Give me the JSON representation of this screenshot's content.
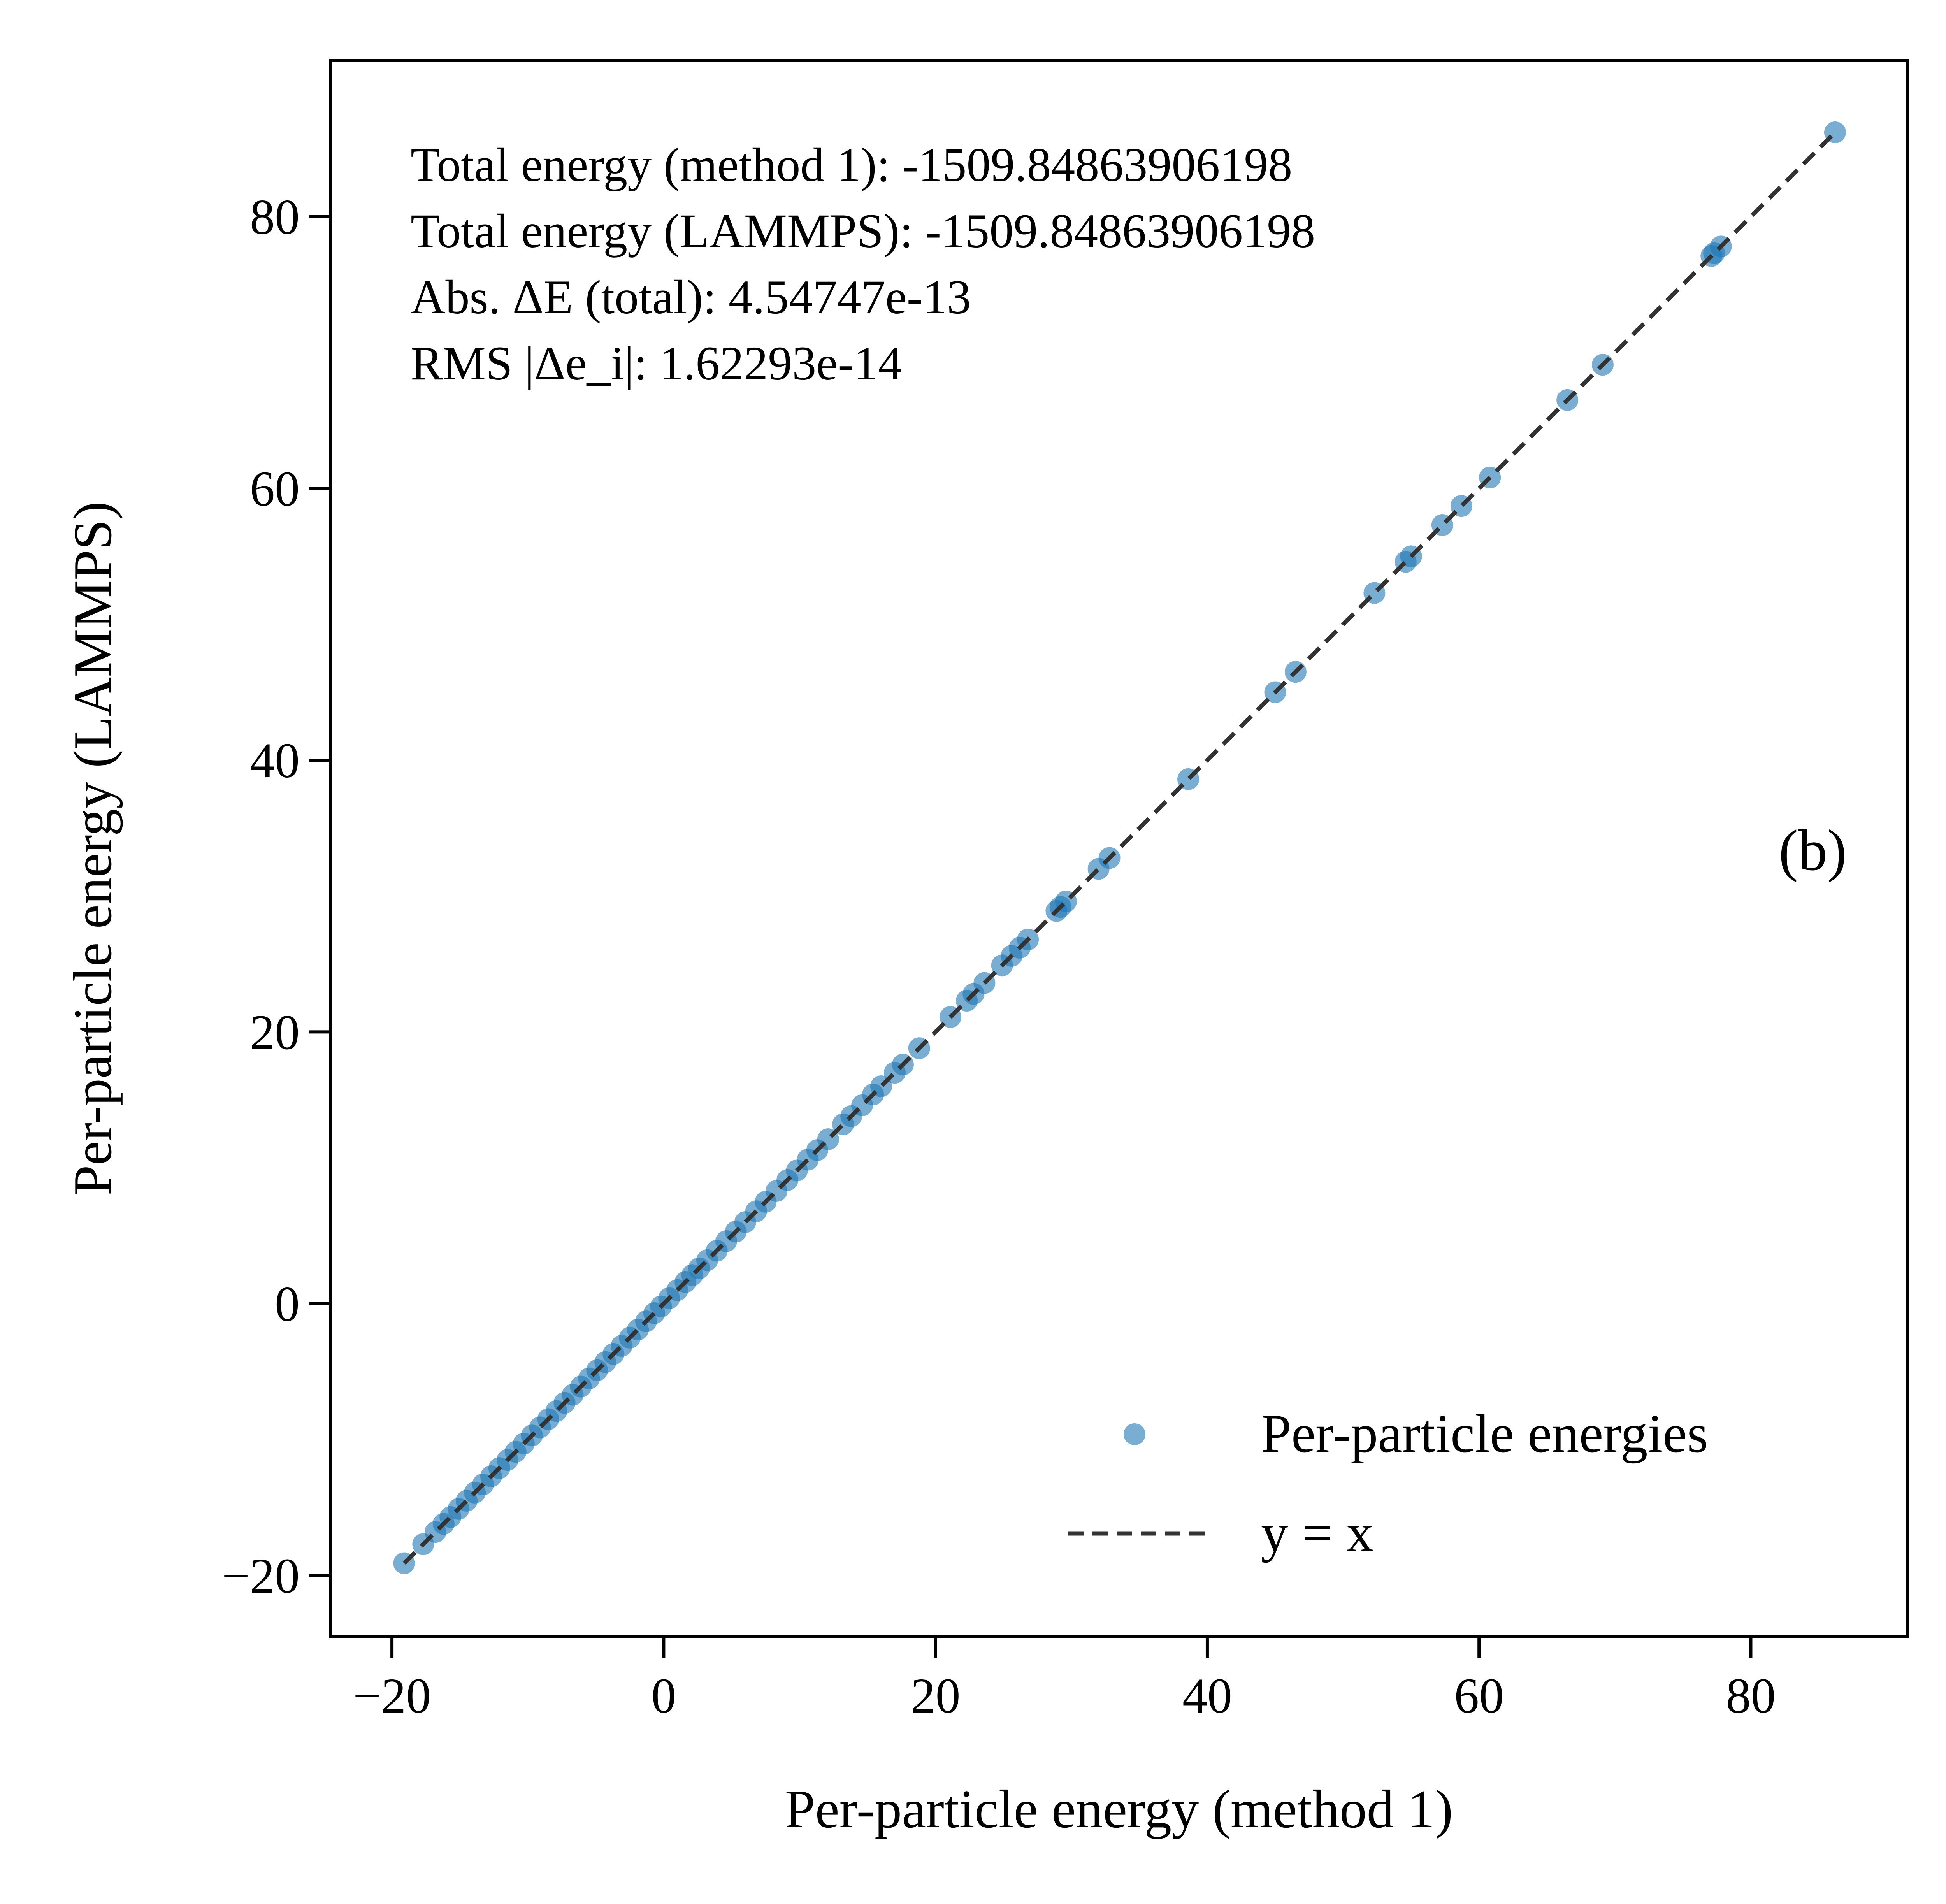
{
  "chart_data": {
    "type": "scatter",
    "title": "",
    "xlabel": "Per-particle energy (method 1)",
    "ylabel": "Per-particle energy (LAMMPS)",
    "xlim": [
      -24.5,
      91.5
    ],
    "ylim": [
      -24.5,
      91.5
    ],
    "x_ticks": [
      -20,
      0,
      20,
      40,
      60,
      80
    ],
    "y_ticks": [
      -20,
      0,
      20,
      40,
      60,
      80
    ],
    "x_tick_labels": [
      "−20",
      "0",
      "20",
      "40",
      "60",
      "80"
    ],
    "y_tick_labels": [
      "−20",
      "0",
      "20",
      "40",
      "60",
      "80"
    ],
    "grid": false,
    "legend_position": "lower-right",
    "panel_label": "(b)",
    "annotation_lines": [
      "Total energy (method 1):   -1509.84863906198",
      "Total energy (LAMMPS): -1509.84863906198",
      "Abs. ΔE (total): 4.54747e-13",
      "RMS  |Δe_i|: 1.62293e-14"
    ],
    "series": [
      {
        "name": "Per-particle energies",
        "kind": "scatter",
        "color": "#1f77b4",
        "x": [
          -19.1,
          -17.7,
          -16.8,
          -16.2,
          -15.7,
          -15.1,
          -14.5,
          -13.9,
          -13.3,
          -12.7,
          -12.1,
          -11.5,
          -10.9,
          -10.3,
          -9.7,
          -9.1,
          -8.5,
          -7.9,
          -7.3,
          -6.7,
          -6.1,
          -5.5,
          -4.9,
          -4.3,
          -3.7,
          -3.1,
          -2.5,
          -1.9,
          -1.3,
          -0.7,
          -0.2,
          0.4,
          1.0,
          1.6,
          2.1,
          2.6,
          3.2,
          3.9,
          4.6,
          5.3,
          6.0,
          6.8,
          7.5,
          8.3,
          9.1,
          9.8,
          10.6,
          11.3,
          12.1,
          13.2,
          13.8,
          14.6,
          15.4,
          16.0,
          17.0,
          17.6,
          18.8,
          21.1,
          22.3,
          22.8,
          23.6,
          24.9,
          25.6,
          26.2,
          26.8,
          28.9,
          29.2,
          29.6,
          32.0,
          32.8,
          38.6,
          45.0,
          46.5,
          52.3,
          54.6,
          55.0,
          57.3,
          58.7,
          60.8,
          66.5,
          69.1,
          77.1,
          77.3,
          77.8,
          86.2
        ],
        "y": [
          -19.1,
          -17.7,
          -16.8,
          -16.2,
          -15.7,
          -15.1,
          -14.5,
          -13.9,
          -13.3,
          -12.7,
          -12.1,
          -11.5,
          -10.9,
          -10.3,
          -9.7,
          -9.1,
          -8.5,
          -7.9,
          -7.3,
          -6.7,
          -6.1,
          -5.5,
          -4.9,
          -4.3,
          -3.7,
          -3.1,
          -2.5,
          -1.9,
          -1.3,
          -0.7,
          -0.2,
          0.4,
          1.0,
          1.6,
          2.1,
          2.6,
          3.2,
          3.9,
          4.6,
          5.3,
          6.0,
          6.8,
          7.5,
          8.3,
          9.1,
          9.8,
          10.6,
          11.3,
          12.1,
          13.2,
          13.8,
          14.6,
          15.4,
          16.0,
          17.0,
          17.6,
          18.8,
          21.1,
          22.3,
          22.8,
          23.6,
          24.9,
          25.6,
          26.2,
          26.8,
          28.9,
          29.2,
          29.6,
          32.0,
          32.8,
          38.6,
          45.0,
          46.5,
          52.3,
          54.6,
          55.0,
          57.3,
          58.7,
          60.8,
          66.5,
          69.1,
          77.1,
          77.3,
          77.8,
          86.2
        ]
      },
      {
        "name": "y = x",
        "kind": "line",
        "style": "dashed",
        "color": "#333333",
        "x": [
          -19.1,
          86.2
        ],
        "y": [
          -19.1,
          86.2
        ]
      }
    ]
  }
}
